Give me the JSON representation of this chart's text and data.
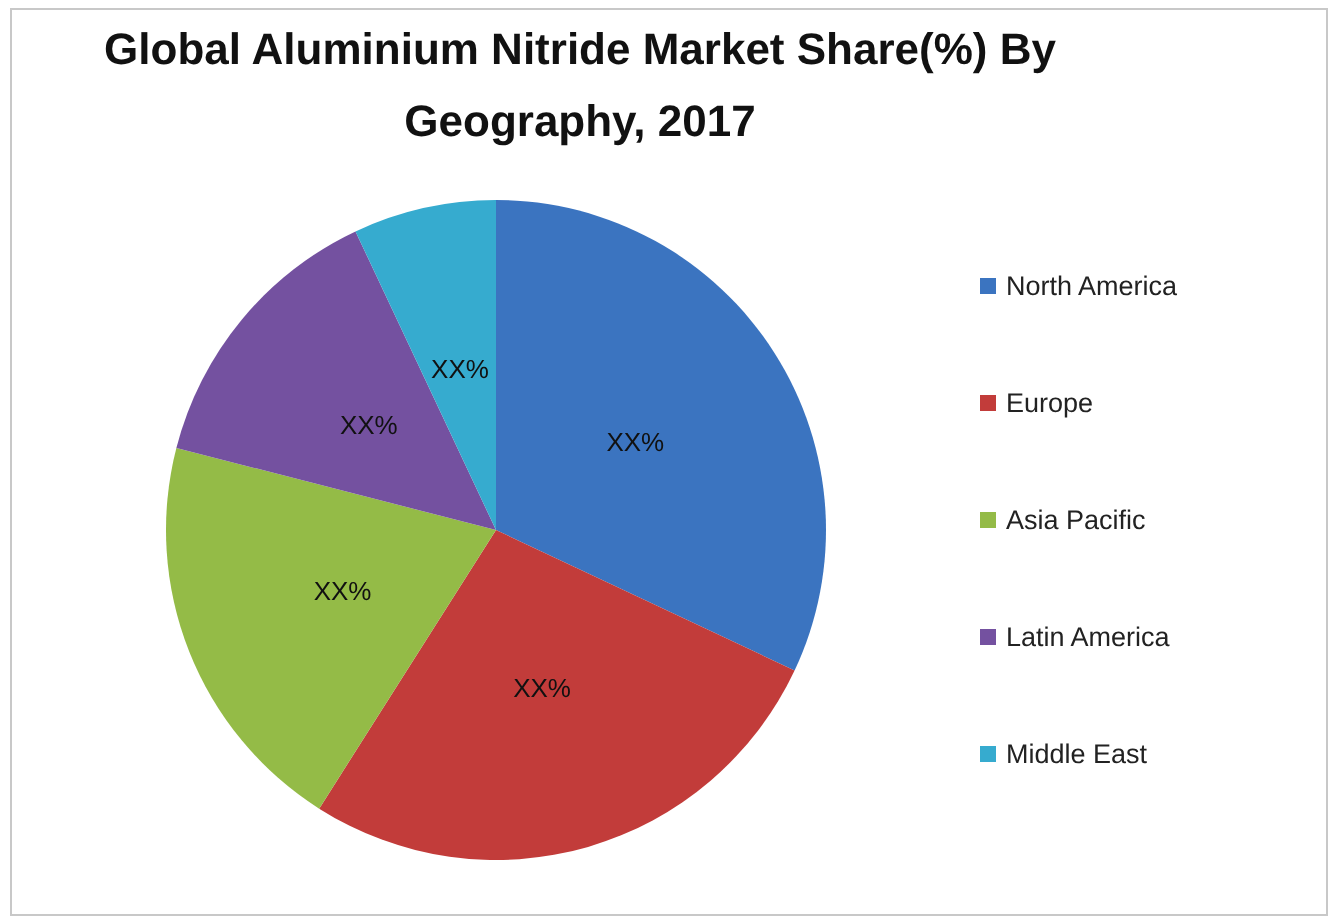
{
  "chart_data": {
    "type": "pie",
    "title": "Global Aluminium Nitride Market Share(%) By Geography, 2017",
    "categories": [
      "North America",
      "Europe",
      "Asia Pacific",
      "Latin America",
      "Middle East"
    ],
    "values": [
      32,
      27,
      20,
      14,
      7
    ],
    "colors": [
      "#3b74c0",
      "#c23c3a",
      "#94bb47",
      "#7451a0",
      "#36abcf"
    ],
    "value_labels": [
      "XX%",
      "XX%",
      "XX%",
      "XX%",
      "XX%"
    ],
    "legend": "right"
  }
}
